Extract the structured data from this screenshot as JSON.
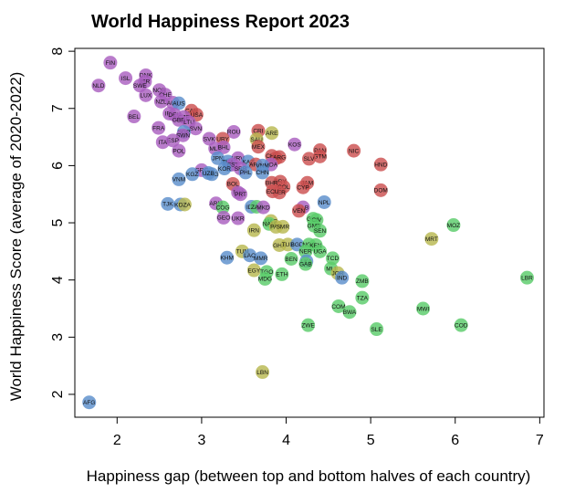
{
  "chart_data": {
    "type": "scatter",
    "title": "World Happiness Report 2023",
    "xlabel": "Happiness gap (between top and bottom halves of each country)",
    "ylabel": "World Happiness Score (average of 2020-2022)",
    "xlim": [
      1.5,
      7.05
    ],
    "ylim": [
      1.6,
      8.05
    ],
    "xticks": [
      2,
      3,
      4,
      5,
      6,
      7
    ],
    "yticks": [
      2,
      3,
      4,
      5,
      6,
      7,
      8
    ],
    "grid": false,
    "legend": "none",
    "colors": {
      "purple": "#a95fc0",
      "red": "#cc5050",
      "blue": "#5b8fcc",
      "green": "#5acc6a",
      "olive": "#b8b850"
    },
    "points": [
      {
        "label": "FIN",
        "x": 1.92,
        "y": 7.8,
        "color": "purple"
      },
      {
        "label": "DNK",
        "x": 2.34,
        "y": 7.58,
        "color": "purple"
      },
      {
        "label": "ISL",
        "x": 2.1,
        "y": 7.53,
        "color": "purple"
      },
      {
        "label": "ISR",
        "x": 2.33,
        "y": 7.47,
        "color": "purple"
      },
      {
        "label": "NLD",
        "x": 1.78,
        "y": 7.4,
        "color": "purple"
      },
      {
        "label": "SWE",
        "x": 2.27,
        "y": 7.4,
        "color": "purple"
      },
      {
        "label": "NOR",
        "x": 2.5,
        "y": 7.32,
        "color": "purple"
      },
      {
        "label": "CHE",
        "x": 2.57,
        "y": 7.24,
        "color": "purple"
      },
      {
        "label": "LUX",
        "x": 2.34,
        "y": 7.23,
        "color": "purple"
      },
      {
        "label": "NZL",
        "x": 2.52,
        "y": 7.12,
        "color": "purple"
      },
      {
        "label": "AUT",
        "x": 2.66,
        "y": 7.1,
        "color": "purple"
      },
      {
        "label": "AUS",
        "x": 2.73,
        "y": 7.09,
        "color": "blue"
      },
      {
        "label": "CAN",
        "x": 2.88,
        "y": 6.96,
        "color": "red"
      },
      {
        "label": "IRL",
        "x": 2.62,
        "y": 6.91,
        "color": "purple"
      },
      {
        "label": "USA",
        "x": 2.94,
        "y": 6.89,
        "color": "red"
      },
      {
        "label": "DEU",
        "x": 2.68,
        "y": 6.89,
        "color": "purple"
      },
      {
        "label": "BEL",
        "x": 2.2,
        "y": 6.86,
        "color": "purple"
      },
      {
        "label": "CZE",
        "x": 2.79,
        "y": 6.85,
        "color": "purple"
      },
      {
        "label": "GBR",
        "x": 2.73,
        "y": 6.8,
        "color": "purple"
      },
      {
        "label": "LTU",
        "x": 2.85,
        "y": 6.76,
        "color": "purple"
      },
      {
        "label": "FRA",
        "x": 2.49,
        "y": 6.66,
        "color": "purple"
      },
      {
        "label": "SVN",
        "x": 2.93,
        "y": 6.65,
        "color": "purple"
      },
      {
        "label": "CRI",
        "x": 3.67,
        "y": 6.61,
        "color": "red"
      },
      {
        "label": "ARE",
        "x": 3.83,
        "y": 6.57,
        "color": "olive"
      },
      {
        "label": "SGP",
        "x": 2.79,
        "y": 6.59,
        "color": "blue"
      },
      {
        "label": "ROU",
        "x": 3.38,
        "y": 6.59,
        "color": "purple"
      },
      {
        "label": "SWN",
        "x": 2.78,
        "y": 6.53,
        "color": "purple"
      },
      {
        "label": "ESP",
        "x": 2.66,
        "y": 6.44,
        "color": "purple"
      },
      {
        "label": "SVK",
        "x": 3.09,
        "y": 6.47,
        "color": "purple"
      },
      {
        "label": "URY",
        "x": 3.25,
        "y": 6.47,
        "color": "red"
      },
      {
        "label": "SAU",
        "x": 3.65,
        "y": 6.46,
        "color": "olive"
      },
      {
        "label": "POL",
        "x": 2.73,
        "y": 6.26,
        "color": "purple"
      },
      {
        "label": "ITA",
        "x": 2.54,
        "y": 6.41,
        "color": "purple"
      },
      {
        "label": "KOS",
        "x": 4.1,
        "y": 6.37,
        "color": "purple"
      },
      {
        "label": "MLT",
        "x": 3.16,
        "y": 6.3,
        "color": "purple"
      },
      {
        "label": "MEX",
        "x": 3.67,
        "y": 6.33,
        "color": "red"
      },
      {
        "label": "BHL",
        "x": 3.26,
        "y": 6.32,
        "color": "purple"
      },
      {
        "label": "NIC",
        "x": 4.8,
        "y": 6.26,
        "color": "red"
      },
      {
        "label": "PAN",
        "x": 4.4,
        "y": 6.27,
        "color": "red"
      },
      {
        "label": "BRA",
        "x": 3.88,
        "y": 6.13,
        "color": "red"
      },
      {
        "label": "GTM",
        "x": 4.4,
        "y": 6.16,
        "color": "red"
      },
      {
        "label": "SLV",
        "x": 4.27,
        "y": 6.12,
        "color": "red"
      },
      {
        "label": "CHL",
        "x": 3.83,
        "y": 6.17,
        "color": "red"
      },
      {
        "label": "HRV",
        "x": 3.43,
        "y": 6.13,
        "color": "purple"
      },
      {
        "label": "ARG",
        "x": 3.92,
        "y": 6.15,
        "color": "red"
      },
      {
        "label": "JPN",
        "x": 3.19,
        "y": 6.13,
        "color": "blue"
      },
      {
        "label": "MYS",
        "x": 3.33,
        "y": 6.01,
        "color": "blue"
      },
      {
        "label": "THA",
        "x": 3.31,
        "y": 6.07,
        "color": "blue"
      },
      {
        "label": "KAZ",
        "x": 3.55,
        "y": 6.07,
        "color": "blue"
      },
      {
        "label": "HND",
        "x": 5.12,
        "y": 6.02,
        "color": "red"
      },
      {
        "label": "EST",
        "x": 3.37,
        "y": 6.02,
        "color": "purple"
      },
      {
        "label": "KOR",
        "x": 3.27,
        "y": 5.95,
        "color": "blue"
      },
      {
        "label": "ARG",
        "x": 3.64,
        "y": 6.02,
        "color": "red"
      },
      {
        "label": "MDA",
        "x": 3.82,
        "y": 6.02,
        "color": "purple"
      },
      {
        "label": "VNM",
        "x": 3.72,
        "y": 6.0,
        "color": "blue"
      },
      {
        "label": "SRB",
        "x": 3.46,
        "y": 5.95,
        "color": "purple"
      },
      {
        "label": "CHN",
        "x": 3.72,
        "y": 5.88,
        "color": "blue"
      },
      {
        "label": "PHL",
        "x": 3.52,
        "y": 5.88,
        "color": "blue"
      },
      {
        "label": "GRC",
        "x": 3.0,
        "y": 5.92,
        "color": "purple"
      },
      {
        "label": "MNG",
        "x": 3.12,
        "y": 5.85,
        "color": "blue"
      },
      {
        "label": "KGZ",
        "x": 2.89,
        "y": 5.85,
        "color": "blue"
      },
      {
        "label": "UZB",
        "x": 3.08,
        "y": 5.87,
        "color": "blue"
      },
      {
        "label": "VNM",
        "x": 2.73,
        "y": 5.76,
        "color": "blue"
      },
      {
        "label": "BOL",
        "x": 3.37,
        "y": 5.68,
        "color": "red"
      },
      {
        "label": "PRY",
        "x": 3.93,
        "y": 5.72,
        "color": "red"
      },
      {
        "label": "JAM",
        "x": 4.25,
        "y": 5.7,
        "color": "red"
      },
      {
        "label": "COL",
        "x": 3.97,
        "y": 5.63,
        "color": "red"
      },
      {
        "label": "BHR",
        "x": 3.83,
        "y": 5.7,
        "color": "red"
      },
      {
        "label": "CYP",
        "x": 4.2,
        "y": 5.62,
        "color": "red"
      },
      {
        "label": "PER",
        "x": 3.92,
        "y": 5.53,
        "color": "red"
      },
      {
        "label": "ECU",
        "x": 3.84,
        "y": 5.55,
        "color": "red"
      },
      {
        "label": "DOM",
        "x": 5.12,
        "y": 5.57,
        "color": "red"
      },
      {
        "label": "BIH",
        "x": 3.43,
        "y": 5.53,
        "color": "purple"
      },
      {
        "label": "PRT",
        "x": 3.46,
        "y": 5.5,
        "color": "purple"
      },
      {
        "label": "NPL",
        "x": 4.45,
        "y": 5.36,
        "color": "blue"
      },
      {
        "label": "TJK",
        "x": 2.6,
        "y": 5.33,
        "color": "blue"
      },
      {
        "label": "KGZ",
        "x": 2.75,
        "y": 5.32,
        "color": "blue"
      },
      {
        "label": "DZA",
        "x": 2.8,
        "y": 5.32,
        "color": "olive"
      },
      {
        "label": "ARM",
        "x": 3.17,
        "y": 5.34,
        "color": "purple"
      },
      {
        "label": "IDN",
        "x": 3.59,
        "y": 5.28,
        "color": "blue"
      },
      {
        "label": "ZAF",
        "x": 3.65,
        "y": 5.28,
        "color": "green"
      },
      {
        "label": "MKD",
        "x": 3.73,
        "y": 5.27,
        "color": "purple"
      },
      {
        "label": "ALB",
        "x": 4.2,
        "y": 5.27,
        "color": "purple"
      },
      {
        "label": "VEN",
        "x": 4.15,
        "y": 5.21,
        "color": "red"
      },
      {
        "label": "COG",
        "x": 3.25,
        "y": 5.27,
        "color": "green"
      },
      {
        "label": "GEO",
        "x": 3.26,
        "y": 5.09,
        "color": "purple"
      },
      {
        "label": "UKR",
        "x": 3.43,
        "y": 5.08,
        "color": "purple"
      },
      {
        "label": "GHA",
        "x": 4.32,
        "y": 5.07,
        "color": "green"
      },
      {
        "label": "CIV",
        "x": 4.36,
        "y": 5.05,
        "color": "green"
      },
      {
        "label": "GMB",
        "x": 4.33,
        "y": 4.95,
        "color": "green"
      },
      {
        "label": "MOZ",
        "x": 5.98,
        "y": 4.96,
        "color": "green"
      },
      {
        "label": "MAR",
        "x": 3.82,
        "y": 5.03,
        "color": "olive"
      },
      {
        "label": "NAM",
        "x": 3.8,
        "y": 4.98,
        "color": "green"
      },
      {
        "label": "PAK",
        "x": 3.88,
        "y": 4.93,
        "color": "olive"
      },
      {
        "label": "SMR",
        "x": 3.96,
        "y": 4.93,
        "color": "olive"
      },
      {
        "label": "IRN",
        "x": 3.62,
        "y": 4.87,
        "color": "olive"
      },
      {
        "label": "SEN",
        "x": 4.4,
        "y": 4.86,
        "color": "green"
      },
      {
        "label": "MRT",
        "x": 5.72,
        "y": 4.72,
        "color": "olive"
      },
      {
        "label": "GHA",
        "x": 3.92,
        "y": 4.61,
        "color": "olive"
      },
      {
        "label": "TUR",
        "x": 4.02,
        "y": 4.62,
        "color": "olive"
      },
      {
        "label": "BGD",
        "x": 4.13,
        "y": 4.62,
        "color": "blue"
      },
      {
        "label": "NGA",
        "x": 4.27,
        "y": 4.62,
        "color": "green"
      },
      {
        "label": "KEN",
        "x": 4.35,
        "y": 4.61,
        "color": "green"
      },
      {
        "label": "NER",
        "x": 4.23,
        "y": 4.5,
        "color": "green"
      },
      {
        "label": "UGA",
        "x": 4.4,
        "y": 4.5,
        "color": "green"
      },
      {
        "label": "TUN",
        "x": 3.48,
        "y": 4.5,
        "color": "olive"
      },
      {
        "label": "LAO",
        "x": 3.57,
        "y": 4.43,
        "color": "blue"
      },
      {
        "label": "MMR",
        "x": 3.7,
        "y": 4.38,
        "color": "blue"
      },
      {
        "label": "KHM",
        "x": 3.3,
        "y": 4.39,
        "color": "blue"
      },
      {
        "label": "BEN",
        "x": 4.06,
        "y": 4.37,
        "color": "green"
      },
      {
        "label": "TCD",
        "x": 4.55,
        "y": 4.38,
        "color": "green"
      },
      {
        "label": "LKA",
        "x": 4.24,
        "y": 4.33,
        "color": "blue"
      },
      {
        "label": "GAB",
        "x": 4.23,
        "y": 4.28,
        "color": "green"
      },
      {
        "label": "ZMB",
        "x": 4.9,
        "y": 3.98,
        "color": "green"
      },
      {
        "label": "MLI",
        "x": 4.53,
        "y": 4.2,
        "color": "green"
      },
      {
        "label": "JOR",
        "x": 4.61,
        "y": 4.12,
        "color": "olive"
      },
      {
        "label": "IND",
        "x": 4.66,
        "y": 4.04,
        "color": "blue"
      },
      {
        "label": "EGY",
        "x": 3.62,
        "y": 4.17,
        "color": "olive"
      },
      {
        "label": "TGO",
        "x": 3.77,
        "y": 4.14,
        "color": "green"
      },
      {
        "label": "ETH",
        "x": 3.95,
        "y": 4.1,
        "color": "green"
      },
      {
        "label": "MDG",
        "x": 3.75,
        "y": 4.02,
        "color": "green"
      },
      {
        "label": "LBR",
        "x": 6.85,
        "y": 4.04,
        "color": "green"
      },
      {
        "label": "TZA",
        "x": 4.9,
        "y": 3.69,
        "color": "green"
      },
      {
        "label": "COM",
        "x": 4.62,
        "y": 3.54,
        "color": "green"
      },
      {
        "label": "BWA",
        "x": 4.75,
        "y": 3.44,
        "color": "green"
      },
      {
        "label": "MWI",
        "x": 5.62,
        "y": 3.5,
        "color": "green"
      },
      {
        "label": "ZWE",
        "x": 4.26,
        "y": 3.21,
        "color": "green"
      },
      {
        "label": "SLE",
        "x": 5.07,
        "y": 3.14,
        "color": "green"
      },
      {
        "label": "COD",
        "x": 6.07,
        "y": 3.21,
        "color": "green"
      },
      {
        "label": "LBN",
        "x": 3.72,
        "y": 2.39,
        "color": "olive"
      },
      {
        "label": "AFG",
        "x": 1.67,
        "y": 1.86,
        "color": "blue"
      }
    ]
  }
}
